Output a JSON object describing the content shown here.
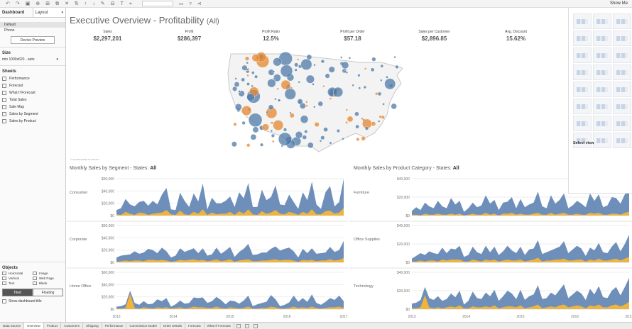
{
  "left_pane": {
    "tabs": [
      "Dashboard",
      "Layout"
    ],
    "devices": [
      "Default",
      "Phone"
    ],
    "device_preview": "Device Preview",
    "size_heading": "Size",
    "size_value": "min 1000x620 - auto",
    "sheets_heading": "Sheets",
    "sheets": [
      "Performance",
      "Forecast",
      "What If Forecast",
      "Total Sales",
      "Sale Map",
      "Sales by Segment",
      "Sales by Product"
    ],
    "objects_heading": "Objects",
    "objects": [
      "Horizontal",
      "Image",
      "Vertical",
      "Web Page",
      "Text",
      "Blank"
    ],
    "tiled": "Tiled",
    "floating": "Floating",
    "show_title": "Show dashboard title"
  },
  "toolbar": {
    "show_me": "Show Me"
  },
  "dashboard": {
    "title": "Executive Overview - Profitability",
    "title_filter": "(All)",
    "kpis": [
      {
        "label": "Sales",
        "value": "$2,297,201"
      },
      {
        "label": "Profit",
        "value": "$286,397"
      },
      {
        "label": "Profit Ratio",
        "value": "12.5%"
      },
      {
        "label": "Profit per Order",
        "value": "$57.18"
      },
      {
        "label": "Sales per Customer",
        "value": "$2,896.85"
      },
      {
        "label": "Avg. Discount",
        "value": "15.62%"
      }
    ],
    "map_credit": "© OpenStreetMap contributors",
    "colors": {
      "positive": "#4e79a7",
      "negative": "#e6852f",
      "area_blue": "#6f8fbb",
      "area_orange": "#f0b43a"
    }
  },
  "show_me": {
    "select_view": "Select view"
  },
  "bottom_tabs": [
    "Data Source",
    "Overview",
    "Product",
    "Customers",
    "Shipping",
    "Performance",
    "Commission Model",
    "Order Details",
    "Forecast",
    "What If Forecast"
  ],
  "chart_data": [
    {
      "type": "area",
      "title": "Monthly Sales by Segment - States:",
      "title_filter": "All",
      "x": [
        "2013",
        "2014",
        "2015",
        "2016",
        "2017"
      ],
      "ylim": [
        0,
        60000
      ],
      "y_ticks": [
        "$0",
        "$20,000",
        "$40,000",
        "$60,000"
      ],
      "rows": [
        {
          "name": "Consumer",
          "sales": [
            9,
            12,
            27,
            18,
            15,
            22,
            24,
            16,
            24,
            18,
            34,
            45,
            10,
            9,
            37,
            24,
            14,
            36,
            23,
            52,
            10,
            29,
            20,
            20,
            24,
            31,
            14,
            38,
            28,
            53,
            14,
            14,
            42,
            25,
            30,
            49,
            18,
            17,
            34,
            22,
            11,
            38,
            25,
            55,
            18,
            11,
            38,
            48,
            15,
            22,
            60
          ],
          "profit": [
            2,
            1,
            6,
            3,
            1,
            5,
            4,
            1,
            3,
            4,
            5,
            9,
            2,
            1,
            8,
            2,
            1,
            6,
            3,
            10,
            1,
            5,
            2,
            3,
            3,
            6,
            1,
            7,
            3,
            10,
            2,
            1,
            7,
            3,
            5,
            9,
            3,
            2,
            6,
            4,
            1,
            6,
            3,
            10,
            2,
            2,
            7,
            8,
            3,
            5,
            12
          ]
        },
        {
          "name": "Corporate",
          "sales": [
            8,
            11,
            12,
            13,
            18,
            14,
            16,
            22,
            20,
            15,
            24,
            18,
            8,
            11,
            23,
            17,
            20,
            23,
            15,
            23,
            11,
            13,
            24,
            14,
            19,
            25,
            9,
            17,
            22,
            30,
            12,
            13,
            16,
            16,
            22,
            26,
            19,
            22,
            24,
            18,
            8,
            22,
            15,
            23,
            14,
            15,
            16,
            25,
            17,
            20,
            35
          ],
          "profit": [
            1,
            2,
            3,
            2,
            3,
            3,
            2,
            4,
            4,
            3,
            4,
            3,
            1,
            2,
            4,
            3,
            4,
            5,
            3,
            4,
            2,
            3,
            5,
            2,
            3,
            5,
            1,
            3,
            4,
            5,
            2,
            2,
            3,
            3,
            4,
            5,
            3,
            4,
            4,
            3,
            1,
            4,
            3,
            4,
            2,
            3,
            3,
            5,
            3,
            4,
            7
          ]
        },
        {
          "name": "Home Office",
          "sales": [
            4,
            5,
            8,
            30,
            10,
            7,
            13,
            8,
            9,
            16,
            13,
            18,
            4,
            8,
            14,
            9,
            10,
            19,
            18,
            19,
            10,
            13,
            20,
            15,
            8,
            14,
            13,
            9,
            14,
            22,
            5,
            8,
            10,
            12,
            23,
            16,
            5,
            7,
            11,
            22,
            12,
            18,
            12,
            24,
            10,
            7,
            12,
            18,
            15,
            22,
            13
          ],
          "profit": [
            1,
            1,
            2,
            25,
            2,
            1,
            3,
            2,
            1,
            3,
            2,
            3,
            1,
            2,
            3,
            1,
            2,
            4,
            3,
            3,
            2,
            2,
            4,
            2,
            1,
            3,
            2,
            1,
            2,
            4,
            1,
            1,
            2,
            2,
            4,
            3,
            1,
            1,
            2,
            4,
            2,
            3,
            2,
            4,
            2,
            1,
            2,
            3,
            3,
            4,
            2
          ]
        }
      ]
    },
    {
      "type": "area",
      "title": "Monthly Sales by Product Category - States:",
      "title_filter": "All",
      "x": [
        "2013",
        "2014",
        "2015",
        "2016",
        "2017"
      ],
      "ylim": [
        0,
        40000
      ],
      "y_ticks": [
        "$0",
        "$20,000",
        "$40,000"
      ],
      "rows": [
        {
          "name": "Furniture",
          "sales": [
            5,
            9,
            6,
            14,
            10,
            8,
            16,
            10,
            8,
            19,
            12,
            16,
            4,
            8,
            14,
            9,
            11,
            22,
            13,
            17,
            6,
            14,
            15,
            20,
            8,
            18,
            9,
            12,
            14,
            26,
            10,
            8,
            22,
            13,
            17,
            24,
            8,
            11,
            16,
            13,
            9,
            24,
            16,
            23,
            9,
            11,
            20,
            19,
            13,
            23,
            30
          ],
          "profit": [
            1,
            1,
            0,
            2,
            1,
            1,
            2,
            1,
            1,
            2,
            1,
            2,
            0,
            1,
            2,
            1,
            1,
            3,
            1,
            2,
            0,
            2,
            2,
            3,
            1,
            2,
            1,
            1,
            2,
            3,
            1,
            1,
            3,
            1,
            2,
            3,
            1,
            1,
            2,
            1,
            1,
            3,
            2,
            3,
            1,
            1,
            2,
            2,
            1,
            3,
            4
          ]
        },
        {
          "name": "Office Supplies",
          "sales": [
            4,
            7,
            10,
            8,
            12,
            10,
            9,
            16,
            10,
            15,
            14,
            18,
            6,
            8,
            17,
            11,
            9,
            18,
            11,
            17,
            8,
            12,
            18,
            13,
            10,
            17,
            8,
            14,
            15,
            24,
            9,
            11,
            13,
            15,
            17,
            23,
            10,
            14,
            18,
            15,
            7,
            16,
            13,
            21,
            11,
            10,
            17,
            22,
            12,
            20,
            30
          ],
          "profit": [
            1,
            1,
            2,
            1,
            2,
            2,
            1,
            3,
            2,
            3,
            3,
            3,
            1,
            1,
            3,
            2,
            1,
            3,
            2,
            3,
            1,
            2,
            3,
            2,
            2,
            3,
            1,
            2,
            3,
            5,
            1,
            2,
            2,
            3,
            3,
            4,
            2,
            2,
            3,
            3,
            1,
            3,
            2,
            4,
            2,
            2,
            3,
            4,
            2,
            4,
            6
          ]
        },
        {
          "name": "Technology",
          "sales": [
            6,
            7,
            10,
            24,
            12,
            10,
            14,
            9,
            11,
            17,
            13,
            20,
            5,
            9,
            19,
            12,
            11,
            18,
            14,
            21,
            9,
            14,
            20,
            17,
            11,
            21,
            10,
            14,
            16,
            26,
            11,
            12,
            18,
            15,
            21,
            27,
            12,
            16,
            20,
            17,
            10,
            22,
            16,
            25,
            13,
            12,
            20,
            24,
            15,
            24,
            34
          ],
          "profit": [
            1,
            1,
            2,
            15,
            2,
            1,
            2,
            1,
            2,
            3,
            2,
            4,
            1,
            1,
            3,
            2,
            2,
            3,
            2,
            4,
            1,
            2,
            3,
            3,
            2,
            4,
            1,
            2,
            3,
            5,
            1,
            2,
            3,
            2,
            4,
            5,
            2,
            3,
            4,
            3,
            1,
            4,
            3,
            5,
            2,
            2,
            4,
            5,
            3,
            5,
            8
          ]
        }
      ]
    }
  ]
}
